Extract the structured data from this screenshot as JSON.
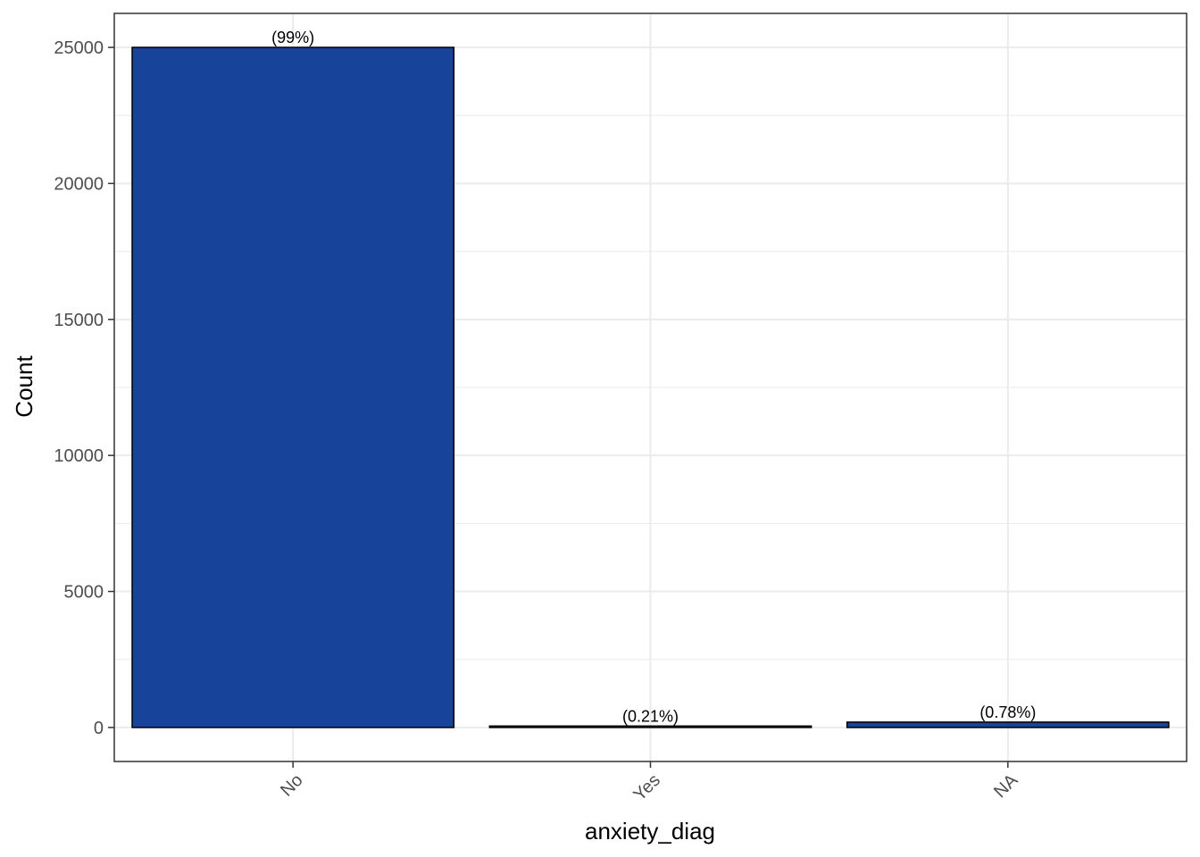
{
  "chart_data": {
    "type": "bar",
    "categories": [
      "No",
      "Yes",
      "NA"
    ],
    "values": [
      25000,
      53,
      197
    ],
    "bar_labels": [
      "(99%)",
      "(0.21%)",
      "(0.78%)"
    ],
    "xlabel": "anxiety_diag",
    "ylabel": "Count",
    "ylim": [
      -1250,
      26250
    ],
    "yticks": [
      0,
      5000,
      10000,
      15000,
      20000,
      25000
    ],
    "grid": true,
    "bar_color": "#17449A",
    "bar_edge_color": "#000000",
    "grid_color": "#EBEBEB"
  }
}
